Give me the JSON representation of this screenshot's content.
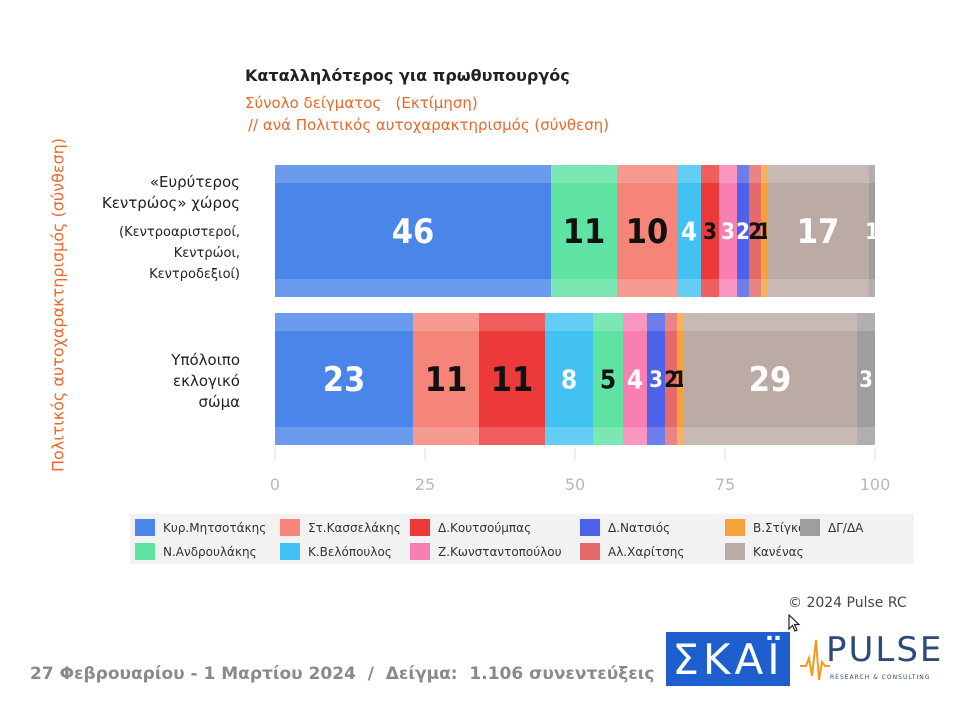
{
  "header": {
    "title": "Καταλληλότερος για πρωθυπουργός",
    "subtitle1": "Σύνολο δείγματος   (Εκτίμηση)",
    "subtitle2": "// ανά Πολιτικός αυτοχαρακτηρισμός (σύνθεση)"
  },
  "y_axis_title": "Πολιτικός αυτοχαρακτηρισμός (σύνθεση)",
  "categories": [
    {
      "label": "«Ευρύτερος\nΚεντρώος» χώρος",
      "sublabel": "(Κεντροαριστεροί,\nΚεντρώοι,\nΚεντροδεξιοί)"
    },
    {
      "label": "Υπόλοιπο\nεκλογικό\nσώμα"
    }
  ],
  "chart_data": {
    "type": "bar",
    "orientation": "horizontal-stacked",
    "title": "Καταλληλότερος για πρωθυπουργός",
    "categories": [
      "«Ευρύτερος Κεντρώος» χώρος",
      "Υπόλοιπο εκλογικό σώμα"
    ],
    "xlim": [
      0,
      100
    ],
    "xticks": [
      "0",
      "25",
      "50",
      "75",
      "100"
    ],
    "series_order_row1": [
      "Κυρ.Μητσοτάκης",
      "Ν.Ανδρουλάκης",
      "Στ.Κασσελάκης",
      "Κ.Βελόπουλος",
      "Δ.Κουτσούμπας",
      "Ζ.Κωνσταντοπούλου",
      "Δ.Νατσιός",
      "Αλ.Χαρίτσης",
      "Β.Στίγκας",
      "Κανένας",
      "ΔΓ/ΔΑ"
    ],
    "series_order_row2": [
      "Κυρ.Μητσοτάκης",
      "Στ.Κασσελάκης",
      "Δ.Κουτσούμπας",
      "Κ.Βελόπουλος",
      "Ν.Ανδρουλάκης",
      "Ζ.Κωνσταντοπούλου",
      "Δ.Νατσιός",
      "Αλ.Χαρίτσης",
      "Β.Στίγκας",
      "Κανένας",
      "ΔΓ/ΔΑ"
    ],
    "rows": [
      [
        {
          "name": "Κυρ.Μητσοτάκης",
          "value": 46,
          "label": "46"
        },
        {
          "name": "Ν.Ανδρουλάκης",
          "value": 11,
          "label": "11"
        },
        {
          "name": "Στ.Κασσελάκης",
          "value": 10,
          "label": "10"
        },
        {
          "name": "Κ.Βελόπουλος",
          "value": 4,
          "label": "4"
        },
        {
          "name": "Δ.Κουτσούμπας",
          "value": 3,
          "label": "3"
        },
        {
          "name": "Ζ.Κωνσταντοπούλου",
          "value": 3,
          "label": "3"
        },
        {
          "name": "Δ.Νατσιός",
          "value": 2,
          "label": "2"
        },
        {
          "name": "Αλ.Χαρίτσης",
          "value": 2,
          "label": "2"
        },
        {
          "name": "Β.Στίγκας",
          "value": 1,
          "label": "1"
        },
        {
          "name": "Κανένας",
          "value": 17,
          "label": "17"
        },
        {
          "name": "ΔΓ/ΔΑ",
          "value": 1,
          "label": "1"
        }
      ],
      [
        {
          "name": "Κυρ.Μητσοτάκης",
          "value": 23,
          "label": "23"
        },
        {
          "name": "Στ.Κασσελάκης",
          "value": 11,
          "label": "11"
        },
        {
          "name": "Δ.Κουτσούμπας",
          "value": 11,
          "label": "11"
        },
        {
          "name": "Κ.Βελόπουλος",
          "value": 8,
          "label": "8"
        },
        {
          "name": "Ν.Ανδρουλάκης",
          "value": 5,
          "label": "5"
        },
        {
          "name": "Ζ.Κωνσταντοπούλου",
          "value": 4,
          "label": "4"
        },
        {
          "name": "Δ.Νατσιός",
          "value": 3,
          "label": "3"
        },
        {
          "name": "Αλ.Χαρίτσης",
          "value": 2,
          "label": "2"
        },
        {
          "name": "Β.Στίγκας",
          "value": 1,
          "label": "1"
        },
        {
          "name": "Κανένας",
          "value": 29,
          "label": "29"
        },
        {
          "name": "ΔΓ/ΔΑ",
          "value": 3,
          "label": "3"
        }
      ]
    ],
    "colors": {
      "Κυρ.Μητσοτάκης": "#4a86ea",
      "Ν.Ανδρουλάκης": "#5fe3a3",
      "Στ.Κασσελάκης": "#f58479",
      "Κ.Βελόπουλος": "#41c2f2",
      "Δ.Κουτσούμπας": "#ec3a3a",
      "Ζ.Κωνσταντοπούλου": "#f77fb1",
      "Δ.Νατσιός": "#4d62e8",
      "Αλ.Χαρίτσης": "#e56a6a",
      "Β.Στίγκας": "#f7a13a",
      "Κανένας": "#bcaaa4",
      "ΔΓ/ΔΑ": "#9e9e9e"
    },
    "dark_labels": [
      "Ν.Ανδρουλάκης",
      "Στ.Κασσελάκης",
      "Δ.Κουτσούμπας",
      "Αλ.Χαρίτσης",
      "Β.Στίγκας"
    ]
  },
  "legend": {
    "row1": [
      "Κυρ.Μητσοτάκης",
      "Στ.Κασσελάκης",
      "Δ.Κουτσούμπας",
      "Δ.Νατσιός",
      "Β.Στίγκας",
      "ΔΓ/ΔΑ"
    ],
    "row2": [
      "Ν.Ανδρουλάκης",
      "Κ.Βελόπουλος",
      "Ζ.Κωνσταντοπούλου",
      "Αλ.Χαρίτσης",
      "Κανένας"
    ]
  },
  "copyright": "© 2024 Pulse RC",
  "footer": "27 Φεβρουαρίου - 1 Μαρτίου 2024  /  Δείγμα:  1.106 συνεντεύξεις",
  "logos": {
    "skai": "ΣΚΑΪ",
    "pulse": "PULSE",
    "pulse_tagline": "RESEARCH & CONSULTING"
  },
  "icons": [
    "pulse-wave-icon",
    "mouse-cursor-icon"
  ]
}
